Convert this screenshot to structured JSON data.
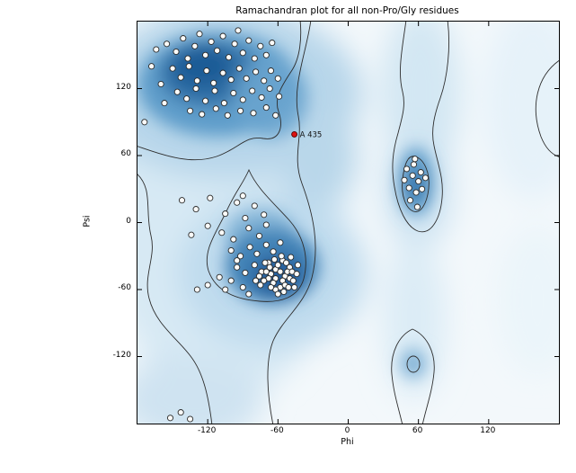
{
  "figure": {
    "title": "Ramachandran plot for all non-Pro/Gly residues",
    "xlabel": "Phi",
    "ylabel": "Psi"
  },
  "palette": {
    "density_low": "#f3f8fb",
    "density_mid": "#9cc3e0",
    "density_high": "#1d5c96",
    "contour_line": "#2e2e2e",
    "point_fill": "#fbfbf9",
    "point_edge": "#2b2b2b",
    "outlier_fill": "#dd1111",
    "outlier_edge": "#550000"
  },
  "chart_data": {
    "type": "scatter",
    "title": "Ramachandran plot for all non-Pro/Gly residues",
    "xlabel": "Phi",
    "ylabel": "Psi",
    "xlim": [
      -180,
      180
    ],
    "ylim": [
      -180,
      180
    ],
    "xticks": [
      "-120",
      "-60",
      "0",
      "60",
      "120"
    ],
    "xtick_values": [
      -120,
      -60,
      0,
      60,
      120
    ],
    "yticks": [
      "120",
      "60",
      "0",
      "-60",
      "-120"
    ],
    "ytick_values": [
      120,
      60,
      0,
      -60,
      -120
    ],
    "grid": false,
    "legend": null,
    "background": "kernel-density shading of favored regions (beta-sheet upper-left, alpha-helix mid-left, left-handed-helix mid-right) with contour outlines",
    "series": [
      {
        "name": "residue",
        "marker": "circle",
        "fill": "#fbfbf9",
        "edge": "#2b2b2b",
        "radius": 3.1,
        "points": [
          [
            -155,
            160
          ],
          [
            -147,
            153
          ],
          [
            -141,
            165
          ],
          [
            -137,
            147
          ],
          [
            -131,
            158
          ],
          [
            -127,
            169
          ],
          [
            -122,
            150
          ],
          [
            -117,
            162
          ],
          [
            -112,
            154
          ],
          [
            -107,
            167
          ],
          [
            -102,
            148
          ],
          [
            -97,
            160
          ],
          [
            -94,
            172
          ],
          [
            -90,
            152
          ],
          [
            -85,
            163
          ],
          [
            -80,
            147
          ],
          [
            -75,
            158
          ],
          [
            -70,
            150
          ],
          [
            -65,
            161
          ],
          [
            -150,
            138
          ],
          [
            -143,
            130
          ],
          [
            -136,
            140
          ],
          [
            -129,
            127
          ],
          [
            -121,
            136
          ],
          [
            -115,
            125
          ],
          [
            -107,
            134
          ],
          [
            -100,
            128
          ],
          [
            -93,
            138
          ],
          [
            -87,
            129
          ],
          [
            -79,
            135
          ],
          [
            -72,
            127
          ],
          [
            -66,
            136
          ],
          [
            -60,
            129
          ],
          [
            -146,
            117
          ],
          [
            -138,
            111
          ],
          [
            -130,
            120
          ],
          [
            -122,
            109
          ],
          [
            -114,
            118
          ],
          [
            -106,
            107
          ],
          [
            -98,
            116
          ],
          [
            -90,
            110
          ],
          [
            -82,
            118
          ],
          [
            -74,
            112
          ],
          [
            -67,
            120
          ],
          [
            -59,
            113
          ],
          [
            -135,
            100
          ],
          [
            -125,
            97
          ],
          [
            -113,
            102
          ],
          [
            -103,
            96
          ],
          [
            -92,
            100
          ],
          [
            -81,
            98
          ],
          [
            -70,
            103
          ],
          [
            -62,
            96
          ],
          [
            -160,
            124
          ],
          [
            -157,
            107
          ],
          [
            -168,
            140
          ],
          [
            -164,
            155
          ],
          [
            -174,
            90
          ],
          [
            -142,
            20
          ],
          [
            -130,
            12
          ],
          [
            -118,
            22
          ],
          [
            -105,
            8
          ],
          [
            -95,
            18
          ],
          [
            -88,
            4
          ],
          [
            -120,
            -3
          ],
          [
            -108,
            -9
          ],
          [
            -98,
            -15
          ],
          [
            -134,
            -11
          ],
          [
            -90,
            24
          ],
          [
            -80,
            15
          ],
          [
            -72,
            7
          ],
          [
            -85,
            -5
          ],
          [
            -76,
            -12
          ],
          [
            -70,
            -2
          ],
          [
            -100,
            -25
          ],
          [
            -92,
            -30
          ],
          [
            -84,
            -22
          ],
          [
            -78,
            -28
          ],
          [
            -70,
            -20
          ],
          [
            -64,
            -26
          ],
          [
            -58,
            -18
          ],
          [
            -95,
            -40
          ],
          [
            -88,
            -45
          ],
          [
            -80,
            -38
          ],
          [
            -74,
            -44
          ],
          [
            -68,
            -36
          ],
          [
            -62,
            -42
          ],
          [
            -56,
            -34
          ],
          [
            -50,
            -40
          ],
          [
            -66,
            -46
          ],
          [
            -62,
            -50
          ],
          [
            -58,
            -44
          ],
          [
            -54,
            -48
          ],
          [
            -60,
            -38
          ],
          [
            -56,
            -52
          ],
          [
            -52,
            -44
          ],
          [
            -64,
            -54
          ],
          [
            -68,
            -50
          ],
          [
            -70,
            -44
          ],
          [
            -58,
            -58
          ],
          [
            -62,
            -60
          ],
          [
            -54,
            -56
          ],
          [
            -50,
            -50
          ],
          [
            -48,
            -44
          ],
          [
            -66,
            -58
          ],
          [
            -72,
            -52
          ],
          [
            -76,
            -48
          ],
          [
            -60,
            -64
          ],
          [
            -55,
            -62
          ],
          [
            -51,
            -58
          ],
          [
            -47,
            -52
          ],
          [
            -67,
            -40
          ],
          [
            -71,
            -36
          ],
          [
            -63,
            -33
          ],
          [
            -57,
            -30
          ],
          [
            -53,
            -36
          ],
          [
            -49,
            -31
          ],
          [
            -75,
            -56
          ],
          [
            -79,
            -52
          ],
          [
            -90,
            -58
          ],
          [
            -85,
            -64
          ],
          [
            -100,
            -52
          ],
          [
            -110,
            -49
          ],
          [
            -120,
            -56
          ],
          [
            -129,
            -60
          ],
          [
            -95,
            -34
          ],
          [
            -105,
            -60
          ],
          [
            -44,
            -46
          ],
          [
            -46,
            -58
          ],
          [
            -43,
            -38
          ],
          [
            50,
            48
          ],
          [
            55,
            42
          ],
          [
            60,
            37
          ],
          [
            52,
            31
          ],
          [
            58,
            27
          ],
          [
            62,
            45
          ],
          [
            48,
            38
          ],
          [
            56,
            52
          ],
          [
            63,
            30
          ],
          [
            53,
            20
          ],
          [
            59,
            14
          ],
          [
            66,
            40
          ],
          [
            57,
            57
          ],
          [
            -152,
            -175
          ],
          [
            -143,
            -170
          ],
          [
            -135,
            -176
          ]
        ]
      },
      {
        "name": "outlier",
        "marker": "circle",
        "fill": "#dd1111",
        "edge": "#550000",
        "radius": 3.0,
        "points": [
          [
            -46,
            79
          ]
        ]
      }
    ],
    "annotation": {
      "text": "A 435",
      "x": -46,
      "y": 79
    }
  }
}
